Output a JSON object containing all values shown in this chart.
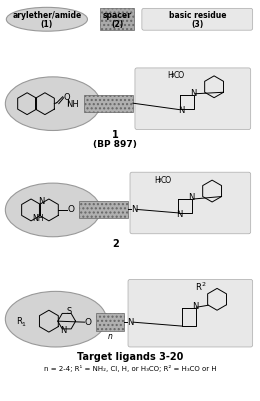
{
  "background_color": "#ffffff",
  "fig_width": 2.6,
  "fig_height": 4.01,
  "dpi": 100,
  "header": {
    "label1": "arylether/amide",
    "label1_num": "(1)",
    "label2": "spacer",
    "label2_num": "(2)",
    "label3": "basic residue",
    "label3_num": "(3)"
  },
  "compound1_label": "1",
  "compound1_sublabel": "(BP 897)",
  "compound2_label": "2",
  "compound3_label": "Target ligands 3-20",
  "footnote": "n = 2-4; R¹ = NH₂, Cl, H, or H₃CO; R² = H₃CO or H",
  "ellipse_fill": "#d3d3d3",
  "ellipse_edge": "#999999",
  "spacer_fill": "#b8b8b8",
  "basic_fill": "#e8e8e8",
  "basic_edge": "#aaaaaa"
}
